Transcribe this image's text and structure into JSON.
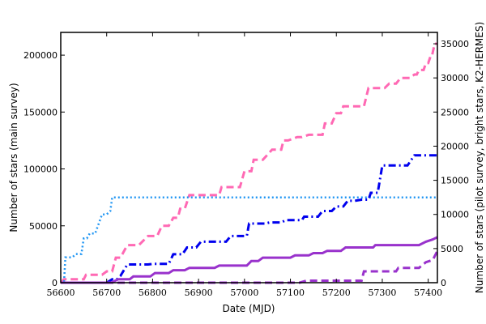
{
  "chart_data": {
    "type": "line",
    "title": "",
    "xlabel": "Date (MJD)",
    "ylabel": "Number of stars (main survey)",
    "ylabel_right": "Number of stars (pilot survey, bright stars, K2-HERMES)",
    "xlim": [
      56600,
      57420
    ],
    "ylim": [
      0,
      220000
    ],
    "ylim_right": [
      0,
      36667
    ],
    "x_ticks": [
      56600,
      56700,
      56800,
      56900,
      57000,
      57100,
      57200,
      57300,
      57400
    ],
    "y_ticks": [
      0,
      50000,
      100000,
      150000,
      200000
    ],
    "y_ticks_right": [
      0,
      5000,
      10000,
      15000,
      20000,
      25000,
      30000,
      35000
    ],
    "grid": false,
    "legend": "none",
    "series": [
      {
        "axis": "left",
        "color": "#ff69b4",
        "style": "dashed",
        "width": 3,
        "x": [
          56600,
          56607,
          56650,
          56655,
          56690,
          56700,
          56712,
          56720,
          56730,
          56745,
          56770,
          56790,
          56810,
          56820,
          56835,
          56845,
          56855,
          56860,
          56870,
          56880,
          56900,
          56915,
          56945,
          56950,
          56990,
          57000,
          57015,
          57020,
          57040,
          57060,
          57080,
          57085,
          57095,
          57115,
          57125,
          57140,
          57170,
          57175,
          57190,
          57200,
          57210,
          57215,
          57225,
          57255,
          57260,
          57270,
          57305,
          57315,
          57330,
          57340,
          57360,
          57370,
          57375,
          57380,
          57390,
          57395,
          57400,
          57405,
          57408,
          57414,
          57420
        ],
        "y": [
          0,
          3000,
          3000,
          7000,
          7000,
          10000,
          10000,
          22000,
          22000,
          33000,
          33000,
          41000,
          41000,
          50000,
          50000,
          57000,
          57000,
          65000,
          65000,
          77000,
          77000,
          77000,
          77000,
          84000,
          84000,
          98000,
          98000,
          108000,
          108000,
          117000,
          117000,
          125000,
          125000,
          128000,
          128000,
          130000,
          130000,
          140000,
          140000,
          149000,
          149000,
          155000,
          155000,
          155000,
          155000,
          171000,
          171000,
          175000,
          175000,
          180000,
          180000,
          183000,
          183000,
          187000,
          187000,
          193000,
          193000,
          199000,
          199000,
          210000,
          210000
        ]
      },
      {
        "axis": "right",
        "color": "#2196f3",
        "style": "dotted",
        "width": 2.5,
        "x": [
          56600,
          56607,
          56610,
          56625,
          56633,
          56645,
          56650,
          56657,
          56663,
          56675,
          56690,
          56700,
          56708,
          56712,
          57420
        ],
        "y": [
          0,
          0,
          3700,
          3700,
          4200,
          4200,
          6500,
          6500,
          7200,
          7200,
          10000,
          10000,
          10500,
          12500,
          12500
        ]
      },
      {
        "axis": "left",
        "color": "#0000ee",
        "style": "dashdot",
        "width": 3,
        "x": [
          56600,
          56700,
          56712,
          56722,
          56730,
          56745,
          56790,
          56800,
          56835,
          56845,
          56865,
          56875,
          56895,
          56905,
          56960,
          56970,
          57005,
          57010,
          57045,
          57055,
          57080,
          57090,
          57125,
          57130,
          57160,
          57170,
          57190,
          57200,
          57215,
          57225,
          57240,
          57255,
          57270,
          57275,
          57290,
          57300,
          57335,
          57340,
          57355,
          57370,
          57380,
          57383,
          57400,
          57410,
          57415,
          57420
        ],
        "y": [
          0,
          0,
          3000,
          3000,
          6000,
          16000,
          16000,
          16500,
          16500,
          25000,
          25000,
          31000,
          31000,
          36000,
          36000,
          41000,
          41000,
          52000,
          52000,
          53000,
          53000,
          55000,
          55000,
          58000,
          58000,
          63000,
          63000,
          67000,
          67000,
          72000,
          72000,
          73000,
          73000,
          79000,
          79000,
          103000,
          103000,
          103000,
          103000,
          112000,
          112000,
          112000,
          112000,
          112000,
          112000,
          112000
        ]
      },
      {
        "axis": "left",
        "color": "#9932cc",
        "style": "solid",
        "width": 3,
        "x": [
          56600,
          56710,
          56725,
          56750,
          56758,
          56795,
          56805,
          56835,
          56845,
          56870,
          56880,
          56935,
          56945,
          57005,
          57015,
          57030,
          57040,
          57100,
          57110,
          57140,
          57150,
          57170,
          57180,
          57210,
          57220,
          57280,
          57285,
          57380,
          57395,
          57410,
          57420
        ],
        "y": [
          0,
          0,
          3000,
          3000,
          5500,
          5500,
          8500,
          8500,
          11000,
          11000,
          13000,
          13000,
          15000,
          15000,
          19000,
          19000,
          22000,
          22000,
          24000,
          24000,
          26000,
          26000,
          28000,
          28000,
          31000,
          31000,
          33000,
          33000,
          36000,
          38000,
          40000
        ]
      },
      {
        "axis": "left",
        "color": "#9932cc",
        "style": "dashed",
        "width": 3,
        "x": [
          56600,
          57120,
          57135,
          57200,
          57255,
          57260,
          57330,
          57335,
          57380,
          57395,
          57410,
          57420
        ],
        "y": [
          0,
          0,
          1800,
          1800,
          1800,
          10000,
          10000,
          13000,
          13000,
          18000,
          20000,
          28000
        ]
      }
    ]
  }
}
